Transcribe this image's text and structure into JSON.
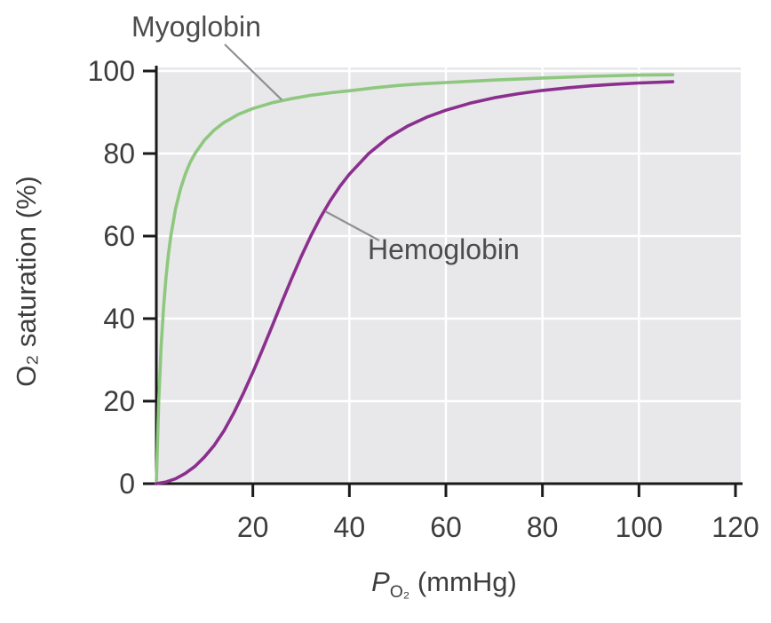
{
  "figure": {
    "y_axis_title": "O₂ saturation (%)",
    "x_axis_title": {
      "var": "P",
      "sub": "O₂",
      "rest": " (mmHg)"
    },
    "curve_labels": {
      "myoglobin": "Myoglobin",
      "hemoglobin": "Hemoglobin"
    }
  },
  "chart_data": {
    "type": "line",
    "title": "",
    "xlabel": "PO2 (mmHg)",
    "ylabel": "O2 saturation (%)",
    "xlim": [
      0,
      120
    ],
    "ylim": [
      0,
      100
    ],
    "x_ticks": [
      20,
      40,
      60,
      80,
      100,
      120
    ],
    "y_ticks": [
      0,
      20,
      40,
      60,
      80,
      100
    ],
    "grid": true,
    "grid_color": "#ffffff",
    "plot_background": "#e8e7ea",
    "axis_color": "#1a1a1a",
    "tick_label_color": "#3d3d3d",
    "legend_position": "none",
    "series": [
      {
        "name": "Myoglobin",
        "color": "#8dc87e",
        "shape": "hyperbolic",
        "x": [
          0,
          0.5,
          1,
          1.5,
          2,
          2.5,
          3,
          4,
          5,
          6,
          7,
          8,
          10,
          12,
          14,
          17,
          20,
          24,
          28,
          32,
          36,
          40,
          45,
          50,
          55,
          60,
          70,
          80,
          90,
          100,
          107
        ],
        "y": [
          0,
          20,
          33.3,
          42.9,
          50,
          55.6,
          60,
          66.7,
          71.4,
          75,
          77.8,
          80,
          83.3,
          85.7,
          87.5,
          89.5,
          90.9,
          92.3,
          93.3,
          94.1,
          94.7,
          95.2,
          95.9,
          96.5,
          96.9,
          97.2,
          97.8,
          98.3,
          98.7,
          99,
          99.1
        ]
      },
      {
        "name": "Hemoglobin",
        "color": "#8b2f8e",
        "shape": "sigmoidal",
        "x": [
          0,
          2,
          4,
          6,
          8,
          10,
          12,
          14,
          16,
          18,
          20,
          22,
          24,
          26,
          28,
          30,
          32,
          34,
          36,
          38,
          40,
          44,
          48,
          52,
          56,
          60,
          65,
          70,
          75,
          80,
          85,
          90,
          95,
          100,
          107
        ],
        "y": [
          0,
          0.4,
          1.2,
          2.5,
          4.2,
          6.5,
          9.3,
          12.8,
          17,
          21.8,
          27,
          32.5,
          38.2,
          44,
          49.6,
          55,
          60,
          64.5,
          68.5,
          72,
          75,
          80,
          83.8,
          86.6,
          88.8,
          90.5,
          92.2,
          93.5,
          94.5,
          95.3,
          95.9,
          96.4,
          96.8,
          97.1,
          97.4
        ]
      }
    ],
    "annotations": [
      {
        "text": "Myoglobin",
        "points_to": {
          "x": 26,
          "y": 93
        }
      },
      {
        "text": "Hemoglobin",
        "points_to": {
          "x": 35,
          "y": 66
        }
      }
    ]
  }
}
